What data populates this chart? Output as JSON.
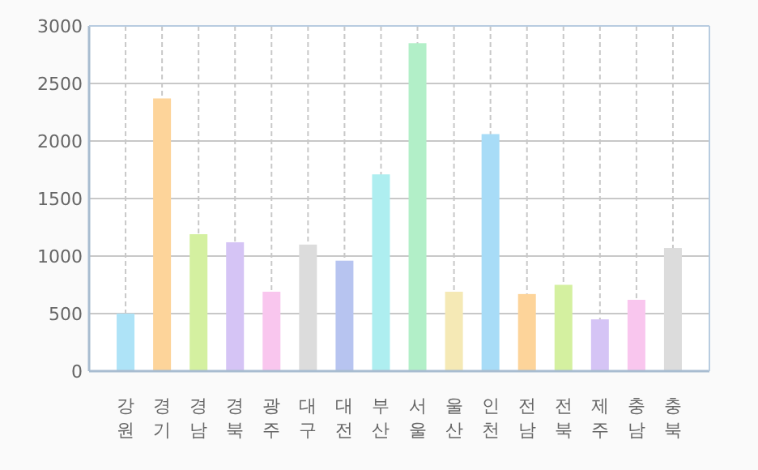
{
  "chart_data": {
    "type": "bar",
    "categories": [
      "강원",
      "경기",
      "경남",
      "경북",
      "광주",
      "대구",
      "대전",
      "부산",
      "서울",
      "울산",
      "인천",
      "전남",
      "전북",
      "제주",
      "충남",
      "충북"
    ],
    "values": [
      500,
      2370,
      1190,
      1120,
      690,
      1100,
      960,
      1710,
      2850,
      690,
      2060,
      670,
      750,
      450,
      620,
      1070
    ],
    "colors": [
      "#aee3f7",
      "#fdd49a",
      "#d4f0a0",
      "#d5c4f5",
      "#f9c6ee",
      "#dcdcdc",
      "#b7c4f0",
      "#aeeef0",
      "#b2efc8",
      "#f5e9b5",
      "#a8dcf7",
      "#fdd49a",
      "#d4f0a0",
      "#d5c4f5",
      "#f9c6ee",
      "#dcdcdc"
    ],
    "ylim": [
      0,
      3000
    ],
    "yticks": [
      0,
      500,
      1000,
      1500,
      2000,
      2500,
      3000
    ],
    "grid": true
  }
}
